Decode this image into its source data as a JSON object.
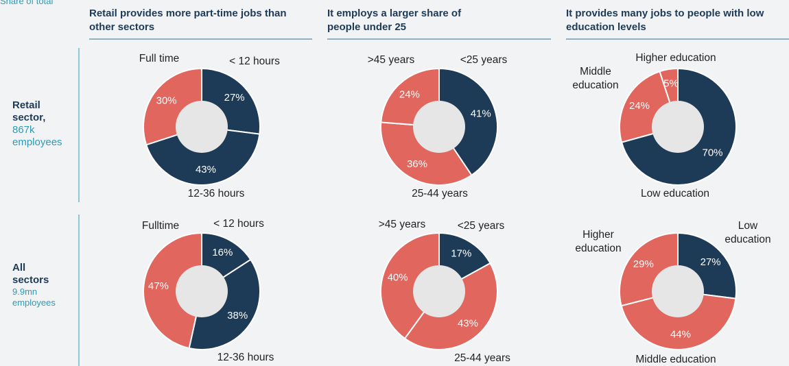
{
  "note": "Share of total",
  "column_titles": [
    "Retail provides more part-time jobs than other sectors",
    "It employs a larger share of people under 25",
    "It provides many jobs to people with low education levels"
  ],
  "row_labels": [
    {
      "name": "Retail sector,",
      "detail": "867k employees"
    },
    {
      "name": "All sectors",
      "detail": "9.9mn employees"
    }
  ],
  "chart_data": [
    {
      "type": "pie",
      "categories": [
        "< 12 hours",
        "12-36 hours",
        "Full time"
      ],
      "values": [
        27,
        43,
        30
      ],
      "value_labels": [
        "27%",
        "43%",
        "30%"
      ],
      "colors": [
        "#1d3a56",
        "#1d3a56",
        "#e0665e"
      ]
    },
    {
      "type": "pie",
      "categories": [
        "<25 years",
        "25-44 years",
        ">45 years"
      ],
      "values": [
        41,
        36,
        24
      ],
      "value_labels": [
        "41%",
        "36%",
        "24%"
      ],
      "colors": [
        "#1d3a56",
        "#e0665e",
        "#e0665e"
      ]
    },
    {
      "type": "pie",
      "categories": [
        "Low education",
        "Middle education",
        "Higher education"
      ],
      "values": [
        70,
        24,
        5
      ],
      "value_labels": [
        "70%",
        "24%",
        "5%"
      ],
      "colors": [
        "#1d3a56",
        "#e0665e",
        "#e0665e"
      ]
    },
    {
      "type": "pie",
      "categories": [
        "< 12 hours",
        "12-36 hours",
        "Fulltime"
      ],
      "values": [
        16,
        38,
        47
      ],
      "value_labels": [
        "16%",
        "38%",
        "47%"
      ],
      "colors": [
        "#1d3a56",
        "#1d3a56",
        "#e0665e"
      ]
    },
    {
      "type": "pie",
      "categories": [
        "<25 years",
        "25-44 years",
        ">45 years"
      ],
      "values": [
        17,
        43,
        40
      ],
      "value_labels": [
        "17%",
        "43%",
        "40%"
      ],
      "colors": [
        "#1d3a56",
        "#e0665e",
        "#e0665e"
      ]
    },
    {
      "type": "pie",
      "categories": [
        "Low education",
        "Middle education",
        "Higher education"
      ],
      "values": [
        27,
        44,
        29
      ],
      "value_labels": [
        "27%",
        "44%",
        "29%"
      ],
      "colors": [
        "#1d3a56",
        "#e0665e",
        "#e0665e"
      ]
    }
  ]
}
